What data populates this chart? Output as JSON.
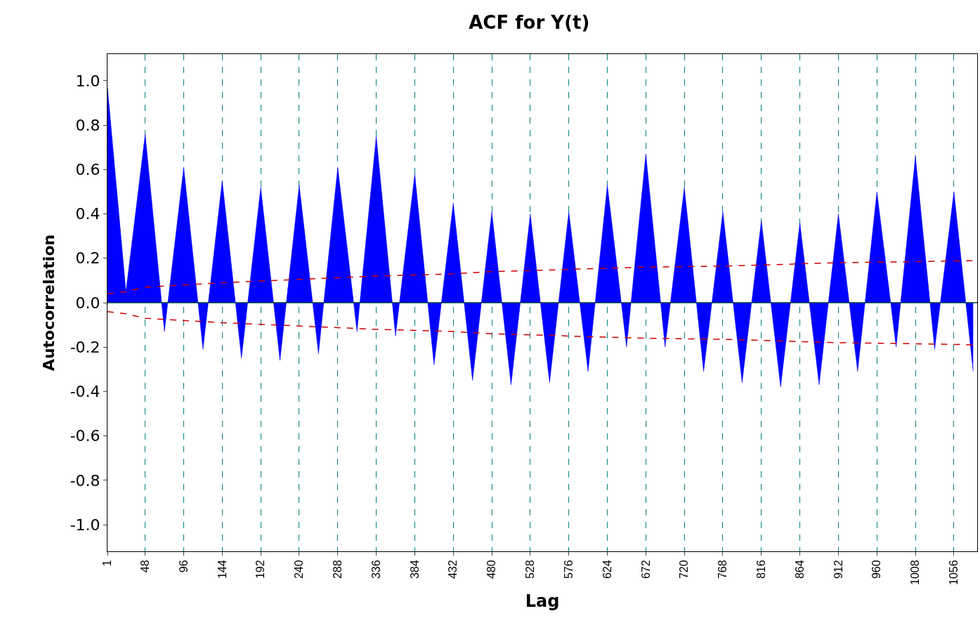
{
  "chart_data": {
    "type": "area",
    "title": "ACF for Y(t)",
    "xlabel": "Lag",
    "ylabel": "Autocorrelation",
    "series": [
      {
        "color": "#0000ff",
        "x": [
          1,
          24,
          48,
          72,
          96,
          120,
          144,
          168,
          192,
          216,
          240,
          264,
          288,
          312,
          336,
          360,
          384,
          408,
          432,
          456,
          480,
          504,
          528,
          552,
          576,
          600,
          624,
          648,
          672,
          696,
          720,
          744,
          768,
          792,
          816,
          840,
          864,
          888,
          912,
          936,
          960,
          984,
          1008,
          1032,
          1056,
          1080
        ],
        "values": [
          0.97,
          0.05,
          0.76,
          -0.13,
          0.61,
          -0.21,
          0.55,
          -0.25,
          0.52,
          -0.26,
          0.53,
          -0.23,
          0.61,
          -0.13,
          0.75,
          -0.15,
          0.58,
          -0.28,
          0.45,
          -0.35,
          0.41,
          -0.37,
          0.4,
          -0.36,
          0.41,
          -0.31,
          0.53,
          -0.2,
          0.67,
          -0.2,
          0.52,
          -0.31,
          0.41,
          -0.36,
          0.37,
          -0.38,
          0.36,
          -0.37,
          0.4,
          -0.31,
          0.5,
          -0.2,
          0.66,
          -0.21,
          0.5,
          -0.31
        ]
      },
      {
        "type": "line",
        "color": "#cc0000",
        "line_style": "dashed",
        "x": [
          1,
          24,
          48,
          144,
          240,
          336,
          432,
          480,
          576,
          672,
          768,
          864,
          912,
          1008,
          1085
        ],
        "values": [
          0.04,
          0.05,
          0.07,
          0.09,
          0.105,
          0.12,
          0.13,
          0.14,
          0.15,
          0.16,
          0.165,
          0.175,
          0.18,
          0.185,
          0.19
        ]
      },
      {
        "type": "line",
        "color": "#cc0000",
        "line_style": "dashed",
        "x": [
          1,
          24,
          48,
          144,
          240,
          336,
          432,
          480,
          576,
          672,
          768,
          864,
          912,
          1008,
          1085
        ],
        "values": [
          -0.04,
          -0.05,
          -0.07,
          -0.09,
          -0.105,
          -0.12,
          -0.13,
          -0.14,
          -0.15,
          -0.16,
          -0.165,
          -0.175,
          -0.18,
          -0.185,
          -0.19
        ]
      }
    ],
    "ref_lines": [
      {
        "axis": "y",
        "value": 0,
        "color": "#004040"
      }
    ],
    "xlim": [
      1,
      1085
    ],
    "xticks": [
      1,
      48,
      96,
      144,
      192,
      240,
      288,
      336,
      384,
      432,
      480,
      528,
      576,
      624,
      672,
      720,
      768,
      816,
      864,
      912,
      960,
      1008,
      1056
    ],
    "ylim": [
      -1.12,
      1.12
    ],
    "yticks": [
      {
        "value": -1,
        "label": "-1.0"
      },
      {
        "value": -0.8,
        "label": "-0.8"
      },
      {
        "value": -0.6,
        "label": "-0.6"
      },
      {
        "value": -0.4,
        "label": "-0.4"
      },
      {
        "value": -0.2,
        "label": "-0.2"
      },
      {
        "value": 0,
        "label": "0.0"
      },
      {
        "value": 0.2,
        "label": "0.2"
      },
      {
        "value": 0.4,
        "label": "0.4"
      },
      {
        "value": 0.6,
        "label": "0.6"
      },
      {
        "value": 0.8,
        "label": "0.8"
      },
      {
        "value": 1,
        "label": "1.0"
      }
    ],
    "grid": "x",
    "marker": "none"
  }
}
